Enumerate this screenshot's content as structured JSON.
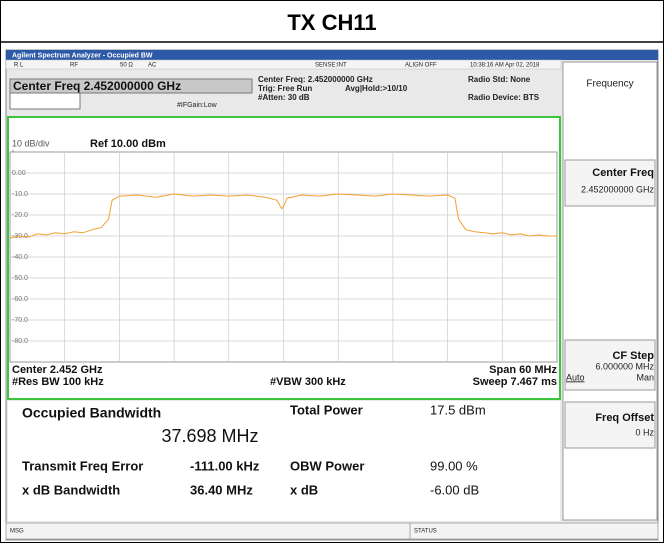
{
  "title": "TX CH11",
  "window_title": "Agilent Spectrum Analyzer - Occupied BW",
  "status_bar": {
    "rl": "R L",
    "rf": "RF",
    "impedance": "50 Ω",
    "coupling": "AC",
    "sense": "SENSE:INT",
    "align": "ALIGN OFF",
    "datetime": "10:38:16 AM Apr 02, 2018"
  },
  "header": {
    "center_freq": "Center Freq  2.452000000 GHz",
    "center_freq_info": "Center Freq: 2.452000000 GHz",
    "trig": "Trig: Free Run",
    "avg_hold": "Avg|Hold:>10/10",
    "atten": "#Atten: 30 dB",
    "if_gain": "#IFGain:Low",
    "radio_std": "Radio Std: None",
    "radio_device": "Radio Device: BTS"
  },
  "plot": {
    "scale": "10 dB/div",
    "ref": "Ref 10.00 dBm",
    "log": "Log",
    "ylim": [
      -90,
      10
    ],
    "yticks": [
      {
        "value": 0,
        "label": "0.00"
      },
      {
        "value": -10,
        "label": "-10.0"
      },
      {
        "value": -20,
        "label": "-20.0"
      },
      {
        "value": -30,
        "label": "-30.0"
      },
      {
        "value": -40,
        "label": "-40.0"
      },
      {
        "value": -50,
        "label": "-50.0"
      },
      {
        "value": -60,
        "label": "-60.0"
      },
      {
        "value": -70,
        "label": "-70.0"
      },
      {
        "value": -80,
        "label": "-80.0"
      }
    ],
    "xlim": [
      2422,
      2482
    ],
    "color": "#f0a030",
    "trace": {
      "x": [
        2422,
        2423,
        2424,
        2425,
        2426,
        2427,
        2428,
        2429,
        2430,
        2431,
        2432,
        2432.8,
        2433.2,
        2434,
        2436,
        2438,
        2440,
        2442,
        2444,
        2446,
        2448,
        2450,
        2451.3,
        2451.8,
        2452,
        2452.4,
        2454,
        2456,
        2458,
        2460,
        2462,
        2464,
        2466,
        2468,
        2470,
        2470.8,
        2471.2,
        2472,
        2473,
        2474,
        2475,
        2476,
        2477,
        2478,
        2479,
        2480,
        2481,
        2482
      ],
      "values": [
        -31,
        -30,
        -30.5,
        -29,
        -29.5,
        -28.5,
        -29,
        -28,
        -28.5,
        -27,
        -26,
        -22,
        -13,
        -11,
        -10.5,
        -11.5,
        -10,
        -11,
        -10.5,
        -11,
        -10.5,
        -11.5,
        -13,
        -17,
        -16,
        -12,
        -10.5,
        -11,
        -10,
        -10.5,
        -11,
        -10,
        -10.5,
        -11,
        -10.5,
        -12,
        -22,
        -27,
        -28,
        -28.5,
        -29,
        -28.5,
        -29.5,
        -29,
        -30,
        -29.5,
        -30,
        -30
      ]
    },
    "center": "Center  2.452 GHz",
    "res_bw": "#Res BW  100 kHz",
    "vbw": "#VBW  300 kHz",
    "span": "Span 60 MHz",
    "sweep": "Sweep  7.467 ms"
  },
  "results": {
    "occupied_bandwidth_label": "Occupied Bandwidth",
    "occupied_bandwidth": "37.698 MHz",
    "total_power_label": "Total Power",
    "total_power": "17.5 dBm",
    "transmit_freq_error_label": "Transmit Freq Error",
    "transmit_freq_error": "-111.00 kHz",
    "obw_power_label": "OBW Power",
    "obw_power": "99.00 %",
    "xdb_bandwidth_label": "x dB Bandwidth",
    "xdb_bandwidth": "36.40 MHz",
    "xdb_label": "x dB",
    "xdb": "-6.00 dB"
  },
  "softkeys": {
    "menu": "Frequency",
    "items": [
      {
        "label": "Center Freq",
        "value": "2.452000000 GHz"
      },
      {
        "label": "CF Step",
        "value": "6.000000 MHz",
        "options": [
          "Auto",
          "Man"
        ]
      },
      {
        "label": "Freq Offset",
        "value": "0 Hz"
      }
    ]
  },
  "footer": {
    "msg": "MSG",
    "status": "STATUS"
  }
}
